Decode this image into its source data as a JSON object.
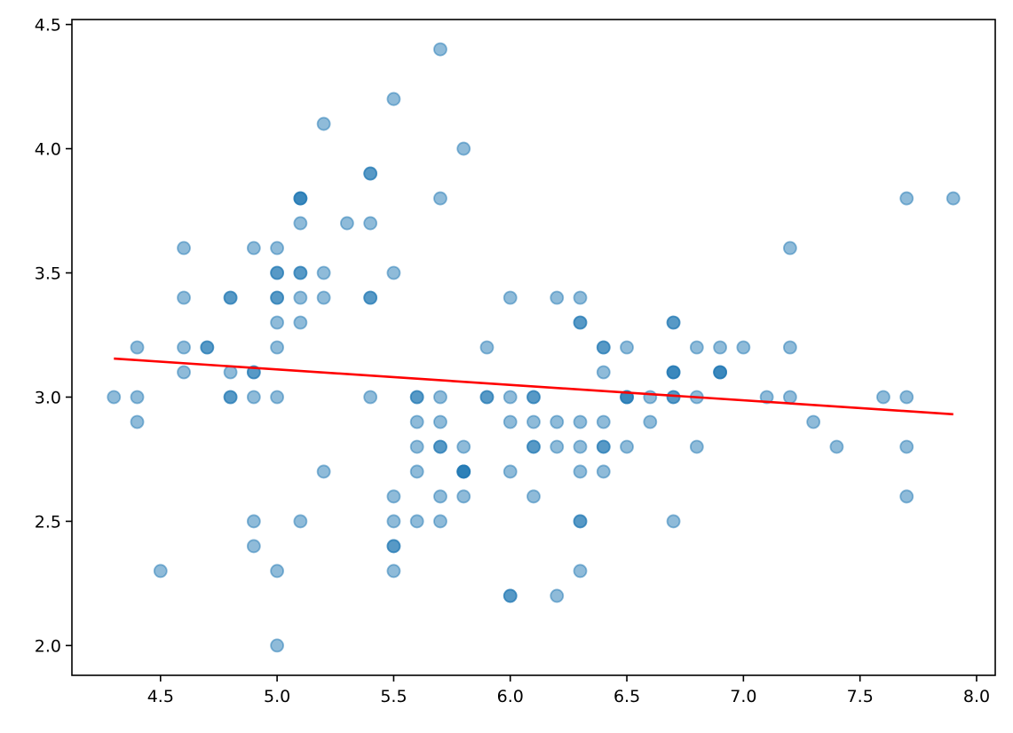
{
  "chart_data": {
    "type": "scatter",
    "title": "",
    "xlabel": "",
    "ylabel": "",
    "xlim": [
      4.12,
      8.08
    ],
    "ylim": [
      1.88,
      4.52
    ],
    "grid": false,
    "x_ticks": [
      "4.5",
      "5.0",
      "5.5",
      "6.0",
      "6.5",
      "7.0",
      "7.5",
      "8.0"
    ],
    "y_ticks": [
      "2.0",
      "2.5",
      "3.0",
      "3.5",
      "4.0",
      "4.5"
    ],
    "point_color": "#1f77b4",
    "point_alpha": 0.5,
    "line_color": "#ff0000",
    "points": [
      [
        5.1,
        3.5
      ],
      [
        4.9,
        3.0
      ],
      [
        4.7,
        3.2
      ],
      [
        4.6,
        3.1
      ],
      [
        5.0,
        3.6
      ],
      [
        5.4,
        3.9
      ],
      [
        4.6,
        3.4
      ],
      [
        5.0,
        3.4
      ],
      [
        4.4,
        2.9
      ],
      [
        4.9,
        3.1
      ],
      [
        5.4,
        3.7
      ],
      [
        4.8,
        3.4
      ],
      [
        4.8,
        3.0
      ],
      [
        4.3,
        3.0
      ],
      [
        5.8,
        4.0
      ],
      [
        5.7,
        4.4
      ],
      [
        5.4,
        3.9
      ],
      [
        5.1,
        3.5
      ],
      [
        5.7,
        3.8
      ],
      [
        5.1,
        3.8
      ],
      [
        5.4,
        3.4
      ],
      [
        5.1,
        3.7
      ],
      [
        4.6,
        3.6
      ],
      [
        5.1,
        3.3
      ],
      [
        4.8,
        3.4
      ],
      [
        5.0,
        3.0
      ],
      [
        5.0,
        3.4
      ],
      [
        5.2,
        3.5
      ],
      [
        5.2,
        3.4
      ],
      [
        4.7,
        3.2
      ],
      [
        4.8,
        3.1
      ],
      [
        5.4,
        3.4
      ],
      [
        5.2,
        4.1
      ],
      [
        5.5,
        4.2
      ],
      [
        4.9,
        3.1
      ],
      [
        5.0,
        3.2
      ],
      [
        5.5,
        3.5
      ],
      [
        4.9,
        3.6
      ],
      [
        4.4,
        3.0
      ],
      [
        5.1,
        3.4
      ],
      [
        5.0,
        3.5
      ],
      [
        4.5,
        2.3
      ],
      [
        4.4,
        3.2
      ],
      [
        5.0,
        3.5
      ],
      [
        5.1,
        3.8
      ],
      [
        4.8,
        3.0
      ],
      [
        5.1,
        3.8
      ],
      [
        4.6,
        3.2
      ],
      [
        5.3,
        3.7
      ],
      [
        5.0,
        3.3
      ],
      [
        7.0,
        3.2
      ],
      [
        6.4,
        3.2
      ],
      [
        6.9,
        3.1
      ],
      [
        5.5,
        2.3
      ],
      [
        6.5,
        2.8
      ],
      [
        5.7,
        2.8
      ],
      [
        6.3,
        3.3
      ],
      [
        4.9,
        2.4
      ],
      [
        6.6,
        2.9
      ],
      [
        5.2,
        2.7
      ],
      [
        5.0,
        2.0
      ],
      [
        5.9,
        3.0
      ],
      [
        6.0,
        2.2
      ],
      [
        6.1,
        2.9
      ],
      [
        5.6,
        2.9
      ],
      [
        6.7,
        3.1
      ],
      [
        5.6,
        3.0
      ],
      [
        5.8,
        2.7
      ],
      [
        6.2,
        2.2
      ],
      [
        5.6,
        2.5
      ],
      [
        5.9,
        3.2
      ],
      [
        6.1,
        2.8
      ],
      [
        6.3,
        2.5
      ],
      [
        6.1,
        2.8
      ],
      [
        6.4,
        2.9
      ],
      [
        6.6,
        3.0
      ],
      [
        6.8,
        2.8
      ],
      [
        6.7,
        3.0
      ],
      [
        6.0,
        2.9
      ],
      [
        5.7,
        2.6
      ],
      [
        5.5,
        2.4
      ],
      [
        5.5,
        2.4
      ],
      [
        5.8,
        2.7
      ],
      [
        6.0,
        2.7
      ],
      [
        5.4,
        3.0
      ],
      [
        6.0,
        3.4
      ],
      [
        6.7,
        3.1
      ],
      [
        6.3,
        2.3
      ],
      [
        5.6,
        3.0
      ],
      [
        5.5,
        2.5
      ],
      [
        5.5,
        2.6
      ],
      [
        6.1,
        3.0
      ],
      [
        5.8,
        2.6
      ],
      [
        5.0,
        2.3
      ],
      [
        5.6,
        2.7
      ],
      [
        5.7,
        3.0
      ],
      [
        5.7,
        2.9
      ],
      [
        6.2,
        2.9
      ],
      [
        5.1,
        2.5
      ],
      [
        5.7,
        2.8
      ],
      [
        6.3,
        3.3
      ],
      [
        5.8,
        2.7
      ],
      [
        7.1,
        3.0
      ],
      [
        6.3,
        2.9
      ],
      [
        6.5,
        3.0
      ],
      [
        7.6,
        3.0
      ],
      [
        4.9,
        2.5
      ],
      [
        7.3,
        2.9
      ],
      [
        6.7,
        2.5
      ],
      [
        7.2,
        3.6
      ],
      [
        6.5,
        3.2
      ],
      [
        6.4,
        2.7
      ],
      [
        6.8,
        3.0
      ],
      [
        5.7,
        2.5
      ],
      [
        5.8,
        2.8
      ],
      [
        6.4,
        3.2
      ],
      [
        6.5,
        3.0
      ],
      [
        7.7,
        3.8
      ],
      [
        7.7,
        2.6
      ],
      [
        6.0,
        2.2
      ],
      [
        6.9,
        3.2
      ],
      [
        5.6,
        2.8
      ],
      [
        7.7,
        2.8
      ],
      [
        6.3,
        2.7
      ],
      [
        6.7,
        3.3
      ],
      [
        7.2,
        3.2
      ],
      [
        6.2,
        2.8
      ],
      [
        6.1,
        3.0
      ],
      [
        6.4,
        2.8
      ],
      [
        7.2,
        3.0
      ],
      [
        7.4,
        2.8
      ],
      [
        7.9,
        3.8
      ],
      [
        6.4,
        2.8
      ],
      [
        6.3,
        2.8
      ],
      [
        6.1,
        2.6
      ],
      [
        7.7,
        3.0
      ],
      [
        6.3,
        3.4
      ],
      [
        6.4,
        3.1
      ],
      [
        6.0,
        3.0
      ],
      [
        6.9,
        3.1
      ],
      [
        6.7,
        3.1
      ],
      [
        6.9,
        3.1
      ],
      [
        5.8,
        2.7
      ],
      [
        6.8,
        3.2
      ],
      [
        6.7,
        3.3
      ],
      [
        6.7,
        3.0
      ],
      [
        6.3,
        2.5
      ],
      [
        6.5,
        3.0
      ],
      [
        6.2,
        3.4
      ],
      [
        5.9,
        3.0
      ]
    ],
    "trend_line": {
      "x": [
        4.3,
        7.9
      ],
      "y": [
        3.155,
        2.931
      ]
    }
  }
}
